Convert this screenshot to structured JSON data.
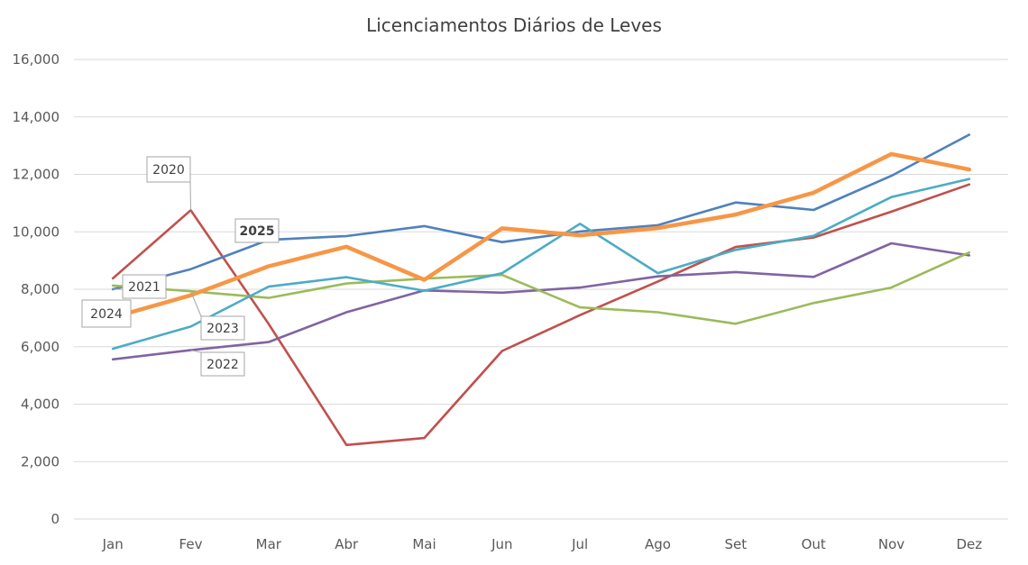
{
  "chart_data": {
    "type": "line",
    "title": "Licenciamentos Diários de Leves",
    "xlabel": "",
    "ylabel": "",
    "categories": [
      "Jan",
      "Fev",
      "Mar",
      "Abr",
      "Mai",
      "Jun",
      "Jul",
      "Ago",
      "Set",
      "Out",
      "Nov",
      "Dez"
    ],
    "ylim": [
      0,
      16000
    ],
    "yticks": [
      0,
      2000,
      4000,
      6000,
      8000,
      10000,
      12000,
      14000,
      16000
    ],
    "ytick_labels": [
      "0",
      "2,000",
      "4,000",
      "6,000",
      "8,000",
      "10,000",
      "12,000",
      "14,000",
      "16,000"
    ],
    "grid": true,
    "legend": "none (series labelled by callouts)",
    "series": [
      {
        "name": "2020",
        "color": "#c0504d",
        "values": [
          8380,
          10750,
          6800,
          2580,
          2820,
          5850,
          7100,
          8270,
          9470,
          9800,
          10700,
          11650
        ]
      },
      {
        "name": "2021",
        "color": "#4f81bd",
        "values": [
          8000,
          8700,
          9720,
          9850,
          10200,
          9640,
          10010,
          10230,
          11020,
          10760,
          11950,
          13380
        ]
      },
      {
        "name": "2022",
        "color": "#8064a2",
        "values": [
          5560,
          5880,
          6160,
          7200,
          7960,
          7880,
          8060,
          8450,
          8600,
          8430,
          9600,
          9180
        ]
      },
      {
        "name": "2023",
        "color": "#9bbb59",
        "values": [
          8130,
          7930,
          7700,
          8200,
          8370,
          8500,
          7370,
          7200,
          6800,
          7520,
          8060,
          9280
        ]
      },
      {
        "name": "2024",
        "color": "#4bacc6",
        "values": [
          5930,
          6700,
          8090,
          8420,
          7950,
          8560,
          10280,
          8560,
          9370,
          9860,
          11210,
          11840
        ]
      },
      {
        "name": "2025",
        "color": "#f79646",
        "bold": true,
        "values": [
          7020,
          7790,
          8800,
          9480,
          8330,
          10120,
          9880,
          10130,
          10600,
          11360,
          12710,
          12170
        ]
      }
    ],
    "annotations": [
      {
        "text": "2020",
        "series": "2020",
        "point": "Fev"
      },
      {
        "text": "2021",
        "series": "2021",
        "point": "Jan"
      },
      {
        "text": "2022",
        "series": "2022",
        "point": "Fev"
      },
      {
        "text": "2023",
        "series": "2023",
        "point": "Fev"
      },
      {
        "text": "2024",
        "series": "2025",
        "point": "Jan"
      },
      {
        "text": "2025",
        "series": "2021",
        "point": "Mar",
        "bold": true
      }
    ]
  }
}
